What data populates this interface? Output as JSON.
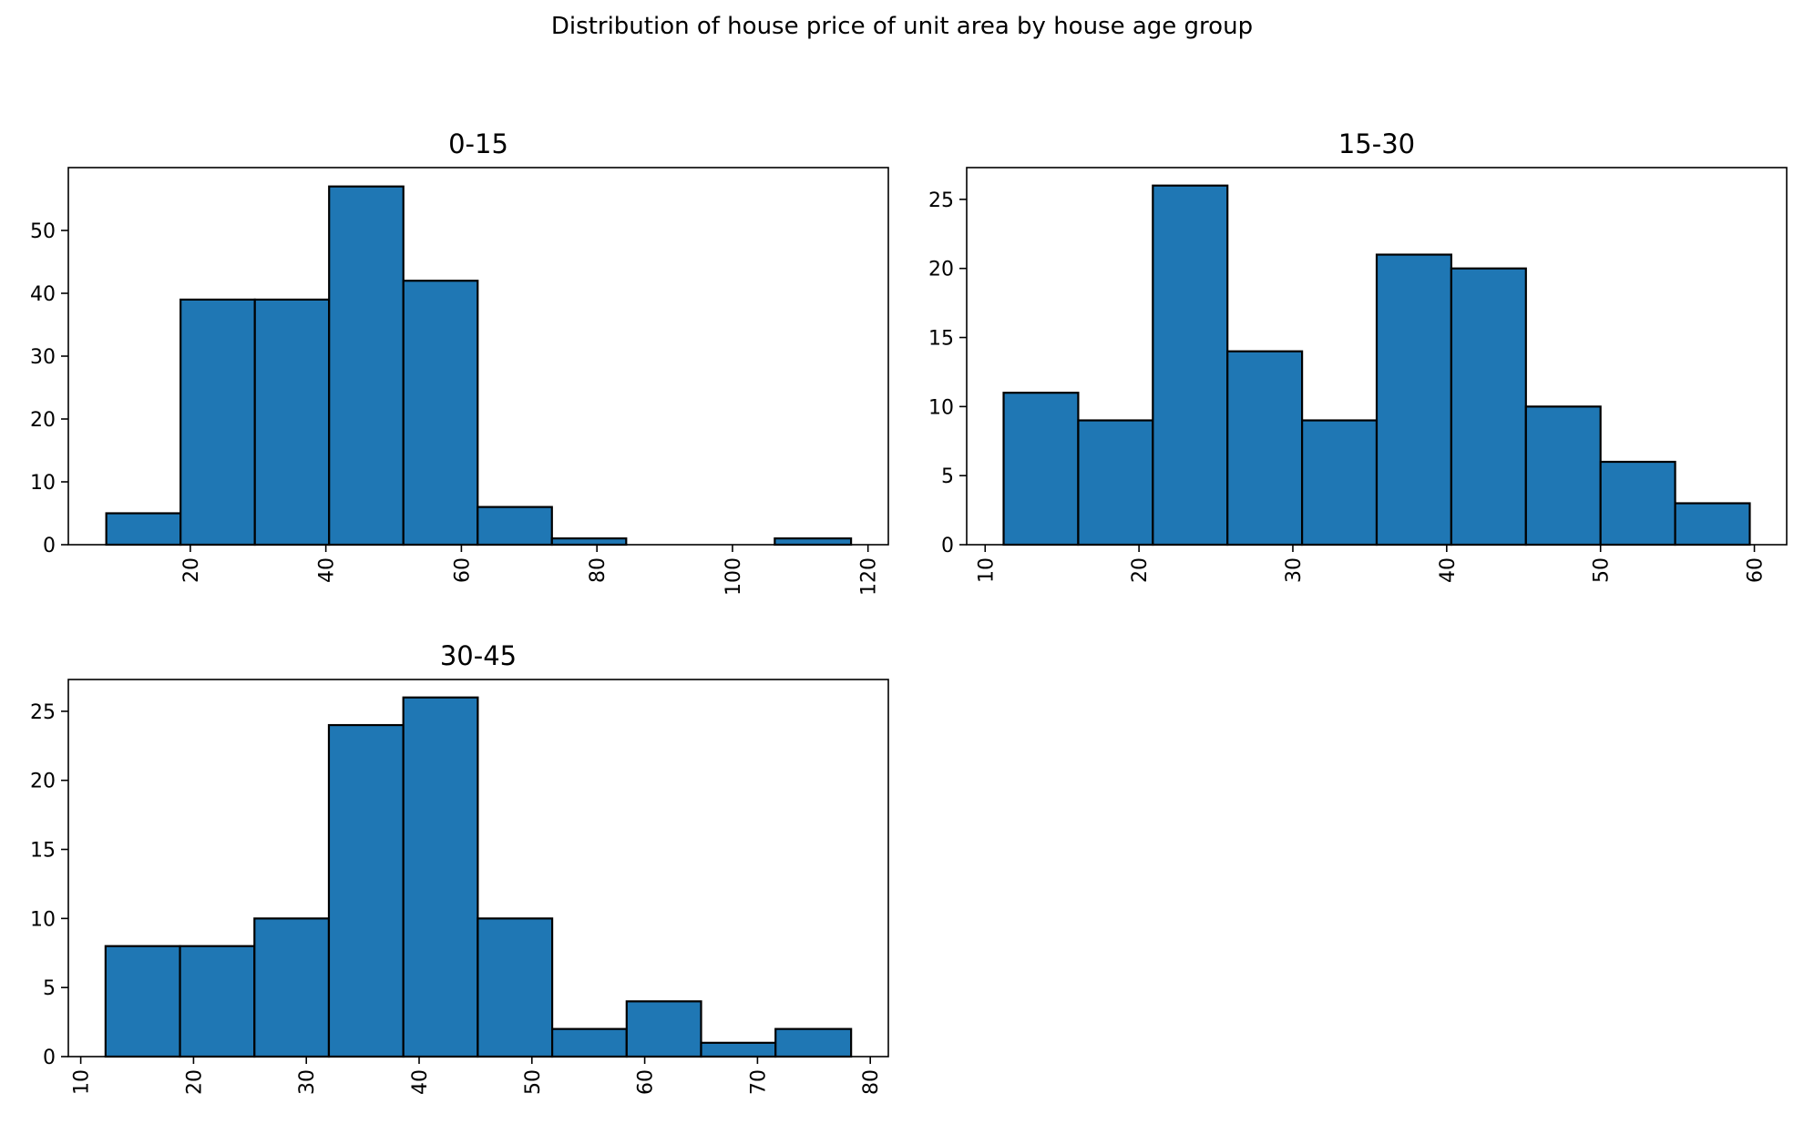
{
  "figure_title": "Distribution of house price of unit area by house age group",
  "colors": {
    "bar_fill": "#1f77b4",
    "bar_edge": "#000000"
  },
  "chart_data": [
    {
      "type": "bar",
      "title": "0-15",
      "bin_edges": [
        7.6,
        18.56,
        29.52,
        40.48,
        51.44,
        62.4,
        73.36,
        84.32,
        95.28,
        106.24,
        117.5
      ],
      "values": [
        5,
        39,
        39,
        57,
        42,
        6,
        1,
        0,
        0,
        1
      ],
      "xlim": [
        2,
        123
      ],
      "ylim": [
        0,
        60
      ],
      "xticks": [
        20,
        40,
        60,
        80,
        100,
        120
      ],
      "yticks": [
        0,
        10,
        20,
        30,
        40,
        50
      ],
      "xlabel": "",
      "ylabel": "",
      "grid": false
    },
    {
      "type": "bar",
      "title": "15-30",
      "bin_edges": [
        11.2,
        16.05,
        20.9,
        25.75,
        30.6,
        35.45,
        40.3,
        45.15,
        50.0,
        54.85,
        59.7
      ],
      "values": [
        11,
        9,
        26,
        14,
        9,
        21,
        20,
        10,
        6,
        3
      ],
      "xlim": [
        8.8,
        62.1
      ],
      "ylim": [
        0,
        27.3
      ],
      "xticks": [
        10,
        20,
        30,
        40,
        50,
        60
      ],
      "yticks": [
        0,
        5,
        10,
        15,
        20,
        25
      ],
      "xlabel": "",
      "ylabel": "",
      "grid": false
    },
    {
      "type": "bar",
      "title": "30-45",
      "bin_edges": [
        12.2,
        18.8,
        25.4,
        32.0,
        38.6,
        45.2,
        51.8,
        58.4,
        65.0,
        71.6,
        78.3
      ],
      "values": [
        8,
        8,
        10,
        24,
        26,
        10,
        2,
        4,
        1,
        2
      ],
      "xlim": [
        8.9,
        81.6
      ],
      "ylim": [
        0,
        27.3
      ],
      "xticks": [
        10,
        20,
        30,
        40,
        50,
        60,
        70,
        80
      ],
      "yticks": [
        0,
        5,
        10,
        15,
        20,
        25
      ],
      "xlabel": "",
      "ylabel": "",
      "grid": false
    }
  ]
}
